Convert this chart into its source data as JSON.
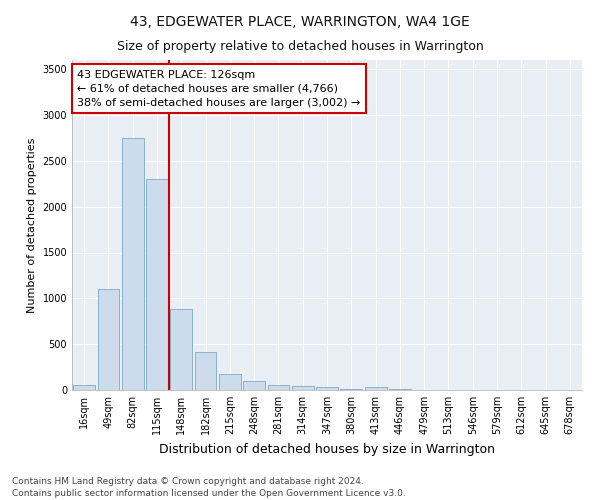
{
  "title": "43, EDGEWATER PLACE, WARRINGTON, WA4 1GE",
  "subtitle": "Size of property relative to detached houses in Warrington",
  "xlabel": "Distribution of detached houses by size in Warrington",
  "ylabel": "Number of detached properties",
  "categories": [
    "16sqm",
    "49sqm",
    "82sqm",
    "115sqm",
    "148sqm",
    "182sqm",
    "215sqm",
    "248sqm",
    "281sqm",
    "314sqm",
    "347sqm",
    "380sqm",
    "413sqm",
    "446sqm",
    "479sqm",
    "513sqm",
    "546sqm",
    "579sqm",
    "612sqm",
    "645sqm",
    "678sqm"
  ],
  "values": [
    50,
    1100,
    2750,
    2300,
    880,
    420,
    175,
    100,
    55,
    45,
    30,
    10,
    30,
    10,
    0,
    0,
    0,
    0,
    0,
    0,
    0
  ],
  "bar_color": "#ccdcec",
  "bar_edge_color": "#7aaac8",
  "vline_color": "#cc0000",
  "vline_pos": 3.5,
  "annotation_text": "43 EDGEWATER PLACE: 126sqm\n← 61% of detached houses are smaller (4,766)\n38% of semi-detached houses are larger (3,002) →",
  "annotation_box_facecolor": "#ffffff",
  "annotation_box_edgecolor": "#cc0000",
  "ylim": [
    0,
    3600
  ],
  "yticks": [
    0,
    500,
    1000,
    1500,
    2000,
    2500,
    3000,
    3500
  ],
  "plot_bg_color": "#e8eef4",
  "fig_bg_color": "#ffffff",
  "grid_color": "#ffffff",
  "title_fontsize": 10,
  "subtitle_fontsize": 9,
  "xlabel_fontsize": 9,
  "ylabel_fontsize": 8,
  "tick_fontsize": 7,
  "annotation_fontsize": 8,
  "footer_fontsize": 6.5,
  "footer": "Contains HM Land Registry data © Crown copyright and database right 2024.\nContains public sector information licensed under the Open Government Licence v3.0."
}
